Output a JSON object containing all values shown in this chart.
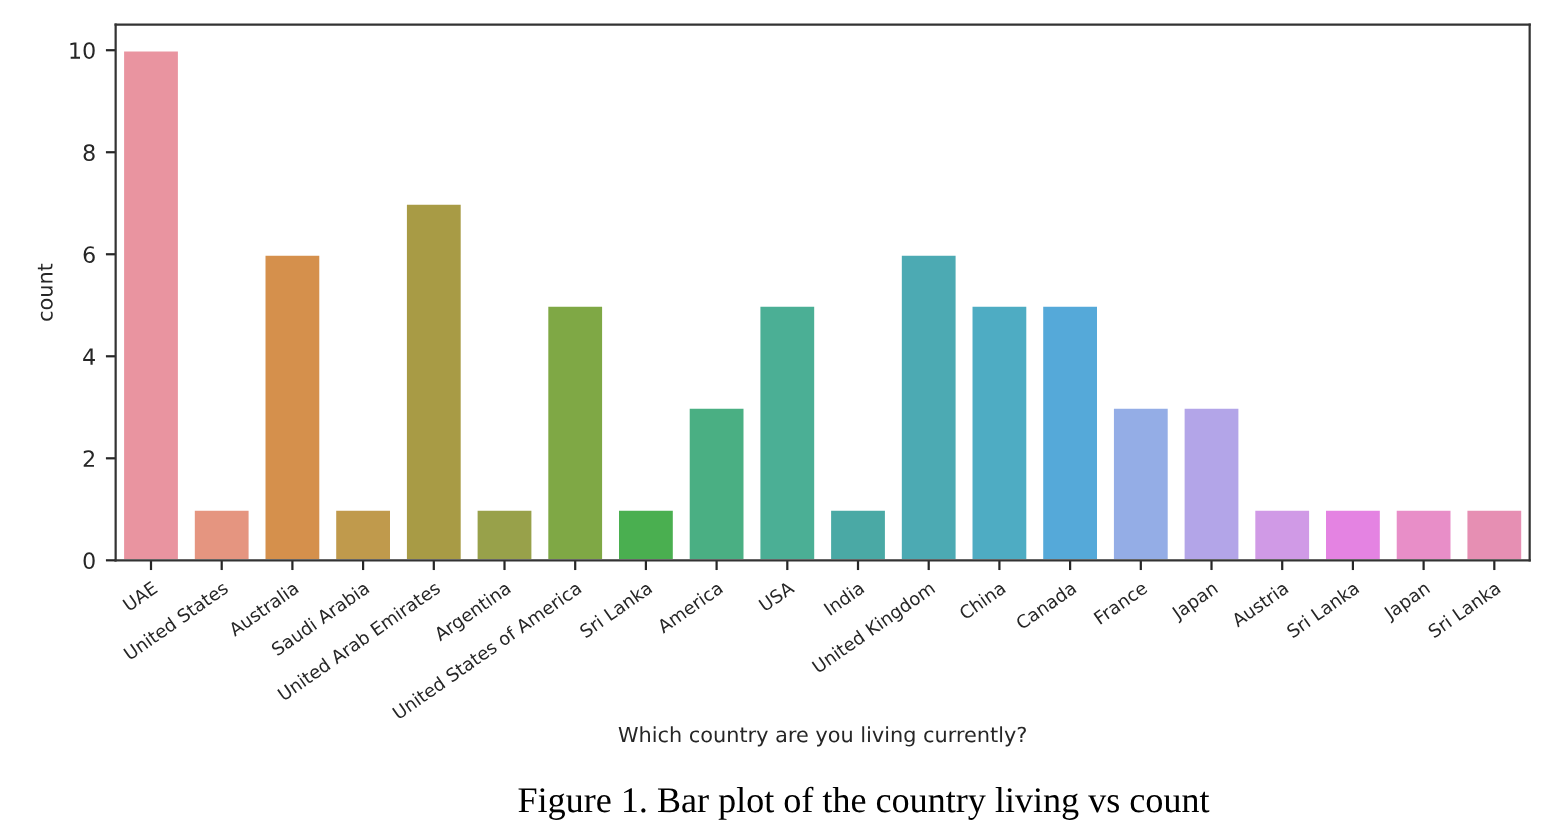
{
  "chart_data": {
    "type": "bar",
    "xlabel": "Which country are you living currently?",
    "ylabel": "count",
    "annotations": [
      "Figure 1. Bar plot of the country living vs count"
    ],
    "categories": [
      "UAE",
      "United States",
      "Australia",
      "Saudi Arabia",
      "United Arab Emirates",
      "Argentina",
      "United States of America",
      "Sri Lanka",
      "America",
      "USA",
      "India",
      "United Kingdom",
      "China",
      "Canada",
      "France",
      "Japan",
      "Austria",
      "Sri Lanka",
      "Japan",
      "Sri Lanka"
    ],
    "values": [
      10,
      1,
      6,
      1,
      7,
      1,
      5,
      1,
      3,
      5,
      1,
      6,
      5,
      5,
      3,
      3,
      1,
      1,
      1,
      1
    ],
    "colors": [
      "#e994a0",
      "#e59580",
      "#d5904c",
      "#c09a4c",
      "#a89b45",
      "#98a14a",
      "#7fa845",
      "#4aaf50",
      "#4aaf83",
      "#4baf95",
      "#4aa9a5",
      "#4caab3",
      "#4eacc3",
      "#55a9d9",
      "#94ade6",
      "#b3a5e8",
      "#d09ae6",
      "#e483e2",
      "#e88ec8",
      "#e68fb3"
    ],
    "ylim": [
      0,
      10.5
    ],
    "yticks": [
      0,
      2,
      4,
      6,
      8,
      10
    ],
    "grid": false,
    "legend": false
  }
}
